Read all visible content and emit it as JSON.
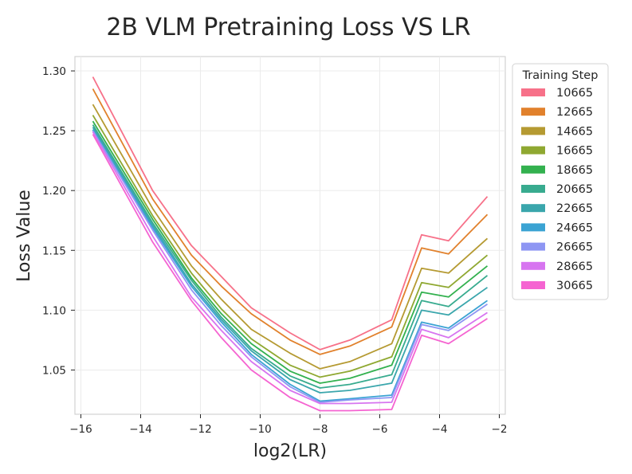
{
  "chart_data": {
    "type": "line",
    "title": "2B VLM Pretraining Loss VS LR",
    "xlabel": "log2(LR)",
    "ylabel": "Loss Value",
    "xlim": [
      -16.2,
      -1.8
    ],
    "ylim": [
      1.013,
      1.312
    ],
    "x_ticks": [
      -16,
      -14,
      -12,
      -10,
      -8,
      -6,
      -4,
      -2
    ],
    "x_tick_labels": [
      "−16",
      "−14",
      "−12",
      "−10",
      "−8",
      "−6",
      "−4",
      "−2"
    ],
    "y_ticks": [
      1.05,
      1.1,
      1.15,
      1.2,
      1.25,
      1.3
    ],
    "y_tick_labels": [
      "1.05",
      "1.10",
      "1.15",
      "1.20",
      "1.25",
      "1.30"
    ],
    "grid": true,
    "legend_title": "Training Step",
    "legend_position": "outside-right",
    "x": [
      -15.6,
      -13.6,
      -12.3,
      -11.3,
      -10.3,
      -9.0,
      -8.0,
      -7.0,
      -5.6,
      -4.6,
      -3.7,
      -2.4
    ],
    "series": [
      {
        "name": "10665",
        "color": "#f77189",
        "values": [
          1.295,
          1.2,
          1.154,
          1.128,
          1.102,
          1.081,
          1.067,
          1.075,
          1.092,
          1.163,
          1.158,
          1.195
        ]
      },
      {
        "name": "12665",
        "color": "#e1812c",
        "values": [
          1.285,
          1.193,
          1.146,
          1.12,
          1.097,
          1.075,
          1.063,
          1.07,
          1.086,
          1.152,
          1.147,
          1.18
        ]
      },
      {
        "name": "14665",
        "color": "#b59a32",
        "values": [
          1.272,
          1.185,
          1.137,
          1.109,
          1.084,
          1.064,
          1.051,
          1.057,
          1.072,
          1.135,
          1.131,
          1.16
        ]
      },
      {
        "name": "16665",
        "color": "#8fa831",
        "values": [
          1.263,
          1.179,
          1.131,
          1.101,
          1.076,
          1.054,
          1.044,
          1.049,
          1.061,
          1.123,
          1.119,
          1.146
        ]
      },
      {
        "name": "18665",
        "color": "#33b14f",
        "values": [
          1.258,
          1.176,
          1.127,
          1.097,
          1.072,
          1.049,
          1.039,
          1.043,
          1.054,
          1.115,
          1.111,
          1.137
        ]
      },
      {
        "name": "20665",
        "color": "#38ab8f",
        "values": [
          1.255,
          1.173,
          1.125,
          1.094,
          1.068,
          1.045,
          1.035,
          1.038,
          1.046,
          1.108,
          1.103,
          1.129
        ]
      },
      {
        "name": "22665",
        "color": "#3aa6ac",
        "values": [
          1.253,
          1.171,
          1.122,
          1.092,
          1.066,
          1.042,
          1.031,
          1.033,
          1.039,
          1.1,
          1.096,
          1.119
        ]
      },
      {
        "name": "24665",
        "color": "#3ba3d3",
        "values": [
          1.251,
          1.169,
          1.12,
          1.09,
          1.063,
          1.038,
          1.024,
          1.026,
          1.029,
          1.09,
          1.085,
          1.108
        ]
      },
      {
        "name": "26665",
        "color": "#8e96f3",
        "values": [
          1.25,
          1.167,
          1.117,
          1.087,
          1.061,
          1.036,
          1.023,
          1.025,
          1.027,
          1.088,
          1.083,
          1.105
        ]
      },
      {
        "name": "28665",
        "color": "#d775f0",
        "values": [
          1.249,
          1.162,
          1.111,
          1.083,
          1.057,
          1.033,
          1.022,
          1.022,
          1.023,
          1.084,
          1.077,
          1.098
        ]
      },
      {
        "name": "30665",
        "color": "#f564d1",
        "values": [
          1.247,
          1.157,
          1.108,
          1.077,
          1.05,
          1.027,
          1.016,
          1.016,
          1.017,
          1.079,
          1.072,
          1.093
        ]
      }
    ]
  }
}
